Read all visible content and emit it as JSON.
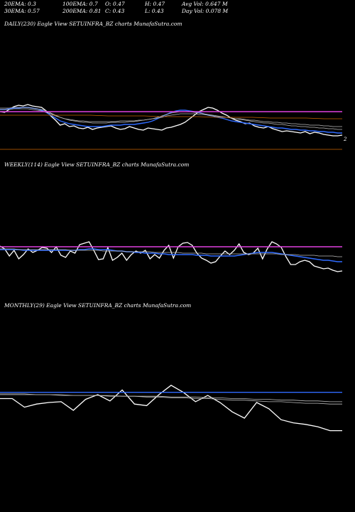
{
  "header": {
    "ema20": "20EMA: 0.3",
    "ema100": "100EMA: 0.7",
    "open": "O: 0.47",
    "high": "H: 0.47",
    "avg_vol": "Avg Vol: 0.647 M",
    "ema30": "30EMA: 0.57",
    "ema200": "200EMA: 0.81",
    "close": "C: 0.43",
    "low": "L: 0.43",
    "day_vol": "Day Vol: 0.078 M"
  },
  "chart_data": [
    {
      "type": "line",
      "title": "DAILY(230) Eagle   View  SETUINFRA_BZ charts MunafaSutra.com",
      "end_label": "2",
      "colors": {
        "price": "#ffffff",
        "ema_blue": "#2f6bff",
        "level": "#e040e0",
        "level2": "#cc6600",
        "ema_gray": "#bbbbbb"
      },
      "series": [
        {
          "role": "price",
          "values": [
            47,
            48,
            44,
            40,
            38,
            39,
            37,
            39,
            40,
            41,
            46,
            53,
            59,
            66,
            64,
            68,
            67,
            70,
            71,
            69,
            72,
            70,
            69,
            68,
            67,
            70,
            72,
            71,
            68,
            70,
            72,
            73,
            70,
            71,
            72,
            73,
            70,
            69,
            67,
            65,
            62,
            57,
            52,
            47,
            44,
            41,
            42,
            45,
            49,
            52,
            56,
            59,
            61,
            64,
            63,
            67,
            69,
            70,
            68,
            71,
            73,
            75,
            74,
            75,
            76,
            77,
            75,
            78,
            76,
            77,
            79,
            80,
            81,
            81,
            80
          ],
          "y": "price"
        },
        {
          "role": "ema_blue",
          "values": [
            44,
            44,
            43,
            42,
            42,
            41,
            41,
            42,
            43,
            45,
            48,
            52,
            56,
            60,
            62,
            64,
            65,
            66,
            67,
            68,
            68,
            68,
            68,
            67,
            66,
            66,
            66,
            65,
            65,
            65,
            64,
            63,
            62,
            60,
            57,
            54,
            51,
            48,
            46,
            45,
            45,
            46,
            47,
            48,
            50,
            52,
            53,
            55,
            56,
            58,
            60,
            61,
            62,
            63,
            64,
            65,
            66,
            67,
            68,
            69,
            70,
            70,
            71,
            72,
            72,
            73,
            73,
            74,
            74,
            75,
            75,
            76,
            76,
            77,
            77
          ]
        },
        {
          "role": "ema_gray",
          "values": [
            42,
            42,
            42,
            41,
            41,
            41,
            41,
            42,
            43,
            44,
            46,
            49,
            52,
            55,
            57,
            59,
            60,
            61,
            62,
            62,
            63,
            63,
            63,
            63,
            62,
            62,
            62,
            62,
            61,
            61,
            60,
            59,
            58,
            57,
            55,
            53,
            51,
            49,
            48,
            47,
            47,
            47,
            48,
            49,
            50,
            51,
            52,
            53,
            54,
            55,
            56,
            57,
            58,
            59,
            60,
            61,
            62,
            63,
            63,
            64,
            65,
            65,
            66,
            67,
            67,
            68,
            68,
            69,
            69,
            70,
            70,
            71,
            71,
            72,
            72
          ]
        },
        {
          "role": "ema_gray",
          "values": [
            44,
            44,
            44,
            43,
            43,
            43,
            43,
            44,
            45,
            46,
            48,
            50,
            53,
            55,
            57,
            58,
            59,
            60,
            60,
            61,
            61,
            61,
            61,
            61,
            61,
            61,
            60,
            60,
            60,
            60,
            59,
            59,
            58,
            57,
            56,
            55,
            53,
            52,
            51,
            50,
            50,
            50,
            50,
            51,
            51,
            52,
            53,
            54,
            54,
            55,
            56,
            57,
            57,
            58,
            59,
            59,
            60,
            61,
            61,
            62,
            62,
            63,
            63,
            64,
            64,
            65,
            65,
            66,
            66,
            66,
            67,
            67,
            68,
            68,
            68
          ]
        },
        {
          "role": "level",
          "values": [
            47,
            47
          ]
        },
        {
          "role": "level2",
          "values": [
            52,
            52,
            52,
            52,
            52,
            52,
            53,
            53,
            53,
            54,
            54,
            54,
            55,
            55,
            55,
            56,
            56,
            56,
            57,
            57
          ]
        },
        {
          "role": "level2_bottom",
          "values": [
            100,
            100
          ]
        }
      ],
      "ylim": [
        0,
        100
      ]
    },
    {
      "type": "line",
      "title": "WEEKLY(114) Eagle   View  SETUINFRA_BZ charts MunafaSutra.com",
      "series": [
        {
          "role": "price",
          "values": [
            46,
            50,
            60,
            52,
            64,
            58,
            50,
            55,
            52,
            48,
            49,
            55,
            47,
            59,
            62,
            53,
            56,
            44,
            42,
            40,
            52,
            65,
            64,
            48,
            66,
            62,
            56,
            66,
            58,
            53,
            56,
            52,
            64,
            58,
            63,
            52,
            45,
            63,
            47,
            42,
            41,
            45,
            56,
            63,
            66,
            70,
            68,
            60,
            53,
            58,
            52,
            43,
            55,
            58,
            56,
            49,
            64,
            50,
            40,
            43,
            48,
            61,
            72,
            72,
            68,
            66,
            68,
            74,
            76,
            78,
            77,
            80,
            82,
            81
          ],
          "y": "price"
        },
        {
          "role": "ema_blue",
          "values": [
            51,
            51,
            51,
            51,
            51,
            52,
            52,
            52,
            52,
            52,
            52,
            52,
            52,
            52,
            52,
            52,
            52,
            51,
            51,
            50,
            50,
            51,
            51,
            51,
            52,
            53,
            53,
            54,
            54,
            55,
            55,
            56,
            56,
            56,
            57,
            57,
            58,
            58,
            58,
            58,
            58,
            58,
            59,
            59,
            59,
            60,
            60,
            60,
            60,
            60,
            60,
            59,
            58,
            57,
            56,
            55,
            55,
            55,
            55,
            56,
            57,
            58,
            59,
            60,
            61,
            62,
            63,
            64,
            65,
            66,
            66,
            67,
            68,
            68
          ]
        },
        {
          "role": "ema_gray",
          "values": [
            50,
            50,
            50,
            50,
            51,
            51,
            51,
            51,
            51,
            51,
            51,
            51,
            51,
            51,
            51,
            52,
            52,
            52,
            52,
            52,
            52,
            52,
            53,
            53,
            53,
            53,
            53,
            54,
            54,
            54,
            54,
            54,
            54,
            55,
            55,
            55,
            55,
            55,
            55,
            56,
            56,
            56,
            56,
            56,
            57,
            57,
            57,
            57,
            57,
            57,
            57,
            57,
            57,
            57,
            57,
            57,
            57,
            57,
            57,
            57,
            58,
            58,
            58,
            58,
            59,
            59,
            59,
            59,
            60,
            60,
            60,
            60,
            61,
            61
          ]
        },
        {
          "role": "level",
          "values": [
            47,
            47
          ]
        }
      ],
      "ylim": [
        0,
        100
      ]
    },
    {
      "type": "line",
      "title": "MONTHLY(29) Eagle   View  SETUINFRA_BZ charts MunafaSutra.com",
      "series": [
        {
          "role": "price",
          "values": [
            55,
            55,
            66,
            62,
            60,
            59,
            70,
            56,
            50,
            58,
            44,
            62,
            64,
            50,
            38,
            47,
            59,
            51,
            60,
            72,
            80,
            60,
            68,
            82,
            86,
            88,
            91,
            96,
            96
          ],
          "y": "price"
        },
        {
          "role": "ema_blue",
          "values": [
            47,
            47
          ]
        },
        {
          "role": "ema_gray",
          "values": [
            49,
            49,
            49,
            50,
            50,
            50,
            51,
            51,
            51,
            52,
            52,
            52,
            53,
            53,
            54,
            54,
            55,
            55,
            56,
            57,
            57,
            58,
            59,
            59,
            60,
            61,
            61,
            62,
            62
          ]
        },
        {
          "role": "ema_gray",
          "values": [
            50,
            50,
            50,
            50,
            50,
            51,
            51,
            51,
            51,
            51,
            52,
            52,
            52,
            52,
            53,
            53,
            53,
            54,
            54,
            55,
            55,
            56,
            56,
            57,
            57,
            58,
            58,
            59,
            59
          ]
        }
      ],
      "ylim": [
        0,
        100
      ]
    }
  ]
}
